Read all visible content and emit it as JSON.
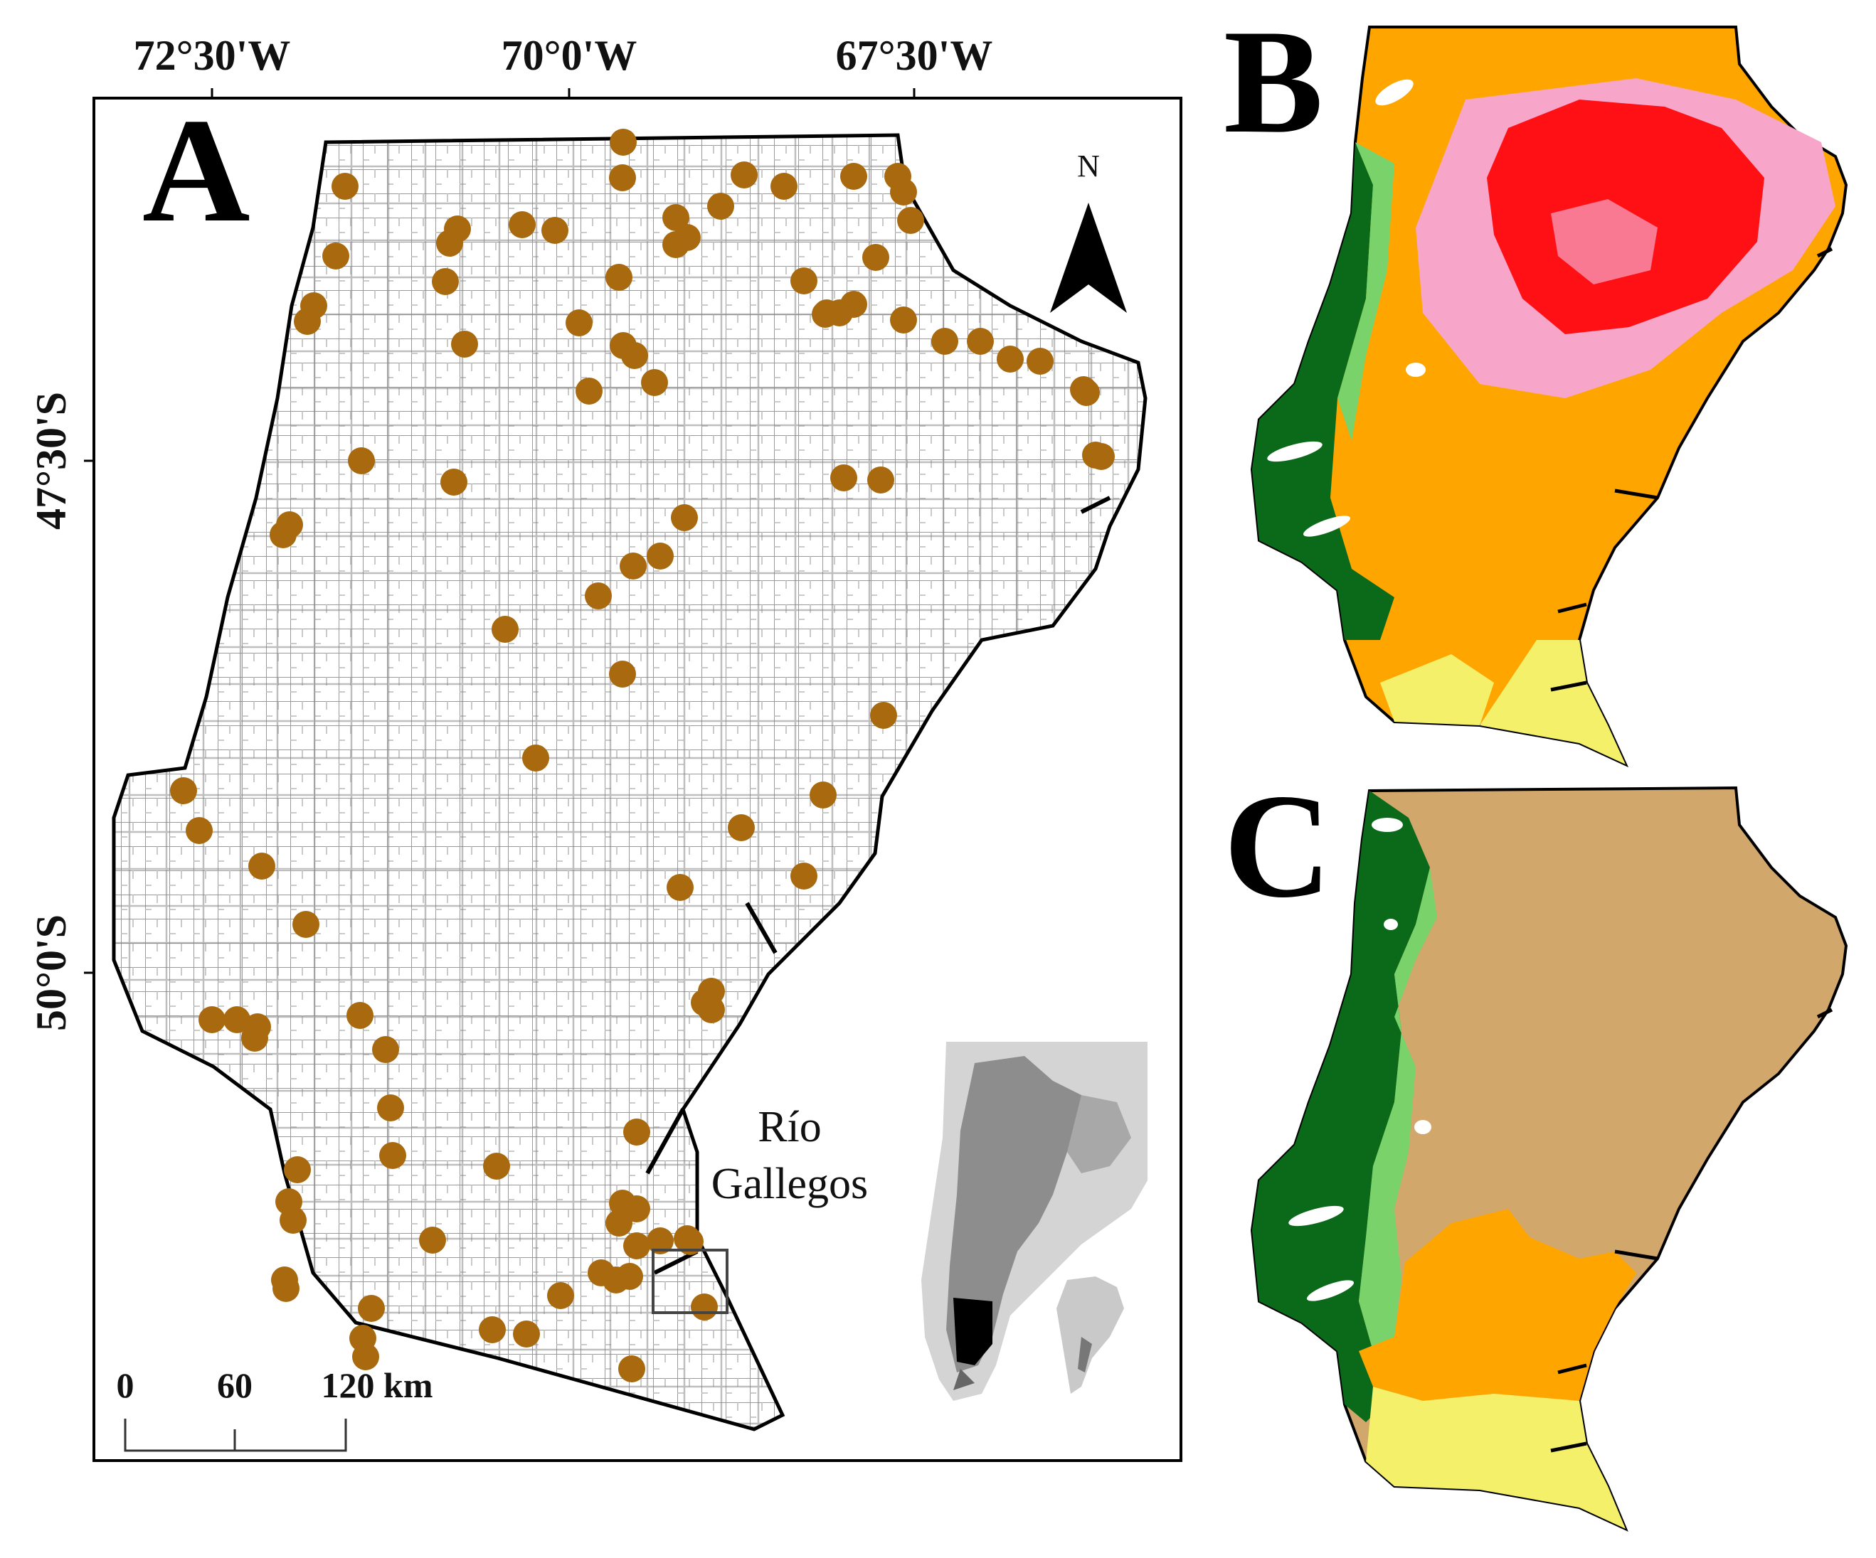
{
  "panels": {
    "a": {
      "letter": "A"
    },
    "b": {
      "letter": "B"
    },
    "c": {
      "letter": "C"
    }
  },
  "graticule": {
    "longitudes": [
      "72°30'W",
      "70°0'W",
      "67°30'W"
    ],
    "latitudes": [
      "47°30'S",
      "50°0'S"
    ]
  },
  "north_arrow": {
    "label": "N"
  },
  "city": {
    "line1": "Río",
    "line2": "Gallegos"
  },
  "scale_bar": {
    "labels": [
      "0",
      "60",
      "120 km"
    ]
  },
  "colors": {
    "sample_point": "#A8690F",
    "roads": "#8a8a8a",
    "forest_dark": "#0B6A1A",
    "steppe_light_green": "#79D36A",
    "shrub_orange": "#FFA500",
    "grass_red": "#FF0000",
    "pink": "#F7A6C9",
    "yellow": "#F4F06A",
    "tan": "#D2A76B"
  },
  "icons": {
    "north": "north-arrow-icon",
    "points": "sample-point-icon"
  }
}
